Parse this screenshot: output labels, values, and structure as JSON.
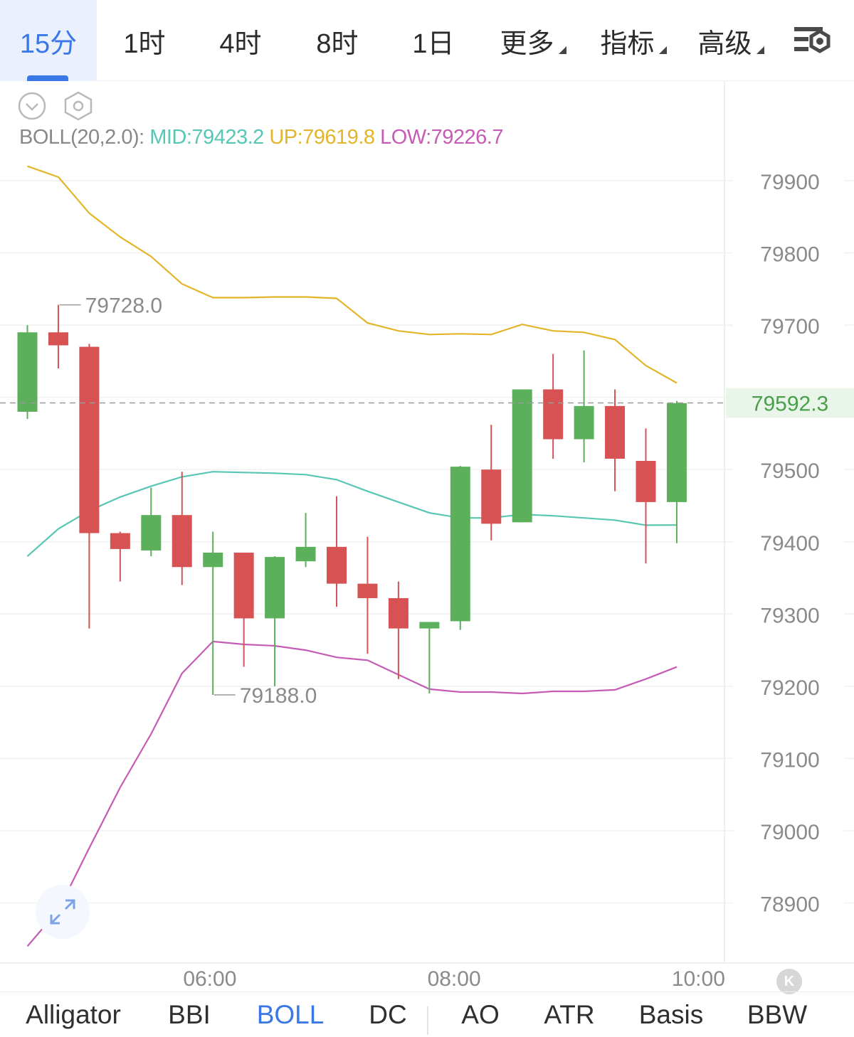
{
  "tabs": [
    {
      "label": "15分",
      "active": true,
      "caret": false
    },
    {
      "label": "1时",
      "active": false,
      "caret": false
    },
    {
      "label": "4时",
      "active": false,
      "caret": false
    },
    {
      "label": "8时",
      "active": false,
      "caret": false
    },
    {
      "label": "1日",
      "active": false,
      "caret": false
    },
    {
      "label": "更多",
      "active": false,
      "caret": true
    },
    {
      "label": "指标",
      "active": false,
      "caret": true
    },
    {
      "label": "高级",
      "active": false,
      "caret": true
    }
  ],
  "settings_icon": "chart-settings-icon",
  "boll": {
    "label": "BOLL(20,2.0):",
    "mid": "MID:79423.2",
    "up": "UP:79619.8",
    "low": "LOW:79226.7"
  },
  "colors": {
    "up_candle": "#5cb05c",
    "down_candle": "#d75252",
    "mid_line": "#58c6b4",
    "up_line": "#e3b52b",
    "low_line": "#c55bb4",
    "last_price_bg": "#eaf5ea",
    "last_price_text": "#4a9f4a",
    "accent": "#3b78e7"
  },
  "chart_data": {
    "type": "candlestick",
    "y_ticks": [
      79900,
      79800,
      79700,
      79600,
      79500,
      79400,
      79300,
      79200,
      79100,
      79000,
      78900
    ],
    "y_tick_labels": [
      "79900",
      "79800",
      "79700",
      "79500",
      "79400",
      "79300",
      "79200",
      "79100",
      "79000",
      "78900"
    ],
    "ylim": [
      78850,
      79950
    ],
    "x_tick_labels": [
      {
        "label": "06:00",
        "index": 5.9
      },
      {
        "label": "08:00",
        "index": 13.8
      },
      {
        "label": "10:00",
        "index": 21.7
      }
    ],
    "last_price": 79592.3,
    "last_price_label": "79592.3",
    "high_marker": {
      "label": "79728.0",
      "value": 79728.0,
      "index": 0.9
    },
    "low_marker": {
      "label": "79188.0",
      "value": 79188.0,
      "index": 5.9
    },
    "candles": [
      {
        "o": 79580,
        "h": 79700,
        "l": 79570,
        "c": 79690
      },
      {
        "o": 79690,
        "h": 79728,
        "l": 79640,
        "c": 79672
      },
      {
        "o": 79670,
        "h": 79674,
        "l": 79280,
        "c": 79412
      },
      {
        "o": 79412,
        "h": 79414,
        "l": 79345,
        "c": 79390
      },
      {
        "o": 79388,
        "h": 79475,
        "l": 79380,
        "c": 79437
      },
      {
        "o": 79437,
        "h": 79497,
        "l": 79340,
        "c": 79365
      },
      {
        "o": 79365,
        "h": 79414,
        "l": 79188,
        "c": 79385
      },
      {
        "o": 79385,
        "h": 79385,
        "l": 79227,
        "c": 79294
      },
      {
        "o": 79294,
        "h": 79380,
        "l": 79200,
        "c": 79379
      },
      {
        "o": 79373,
        "h": 79440,
        "l": 79365,
        "c": 79393
      },
      {
        "o": 79393,
        "h": 79463,
        "l": 79310,
        "c": 79342
      },
      {
        "o": 79342,
        "h": 79407,
        "l": 79245,
        "c": 79322
      },
      {
        "o": 79322,
        "h": 79345,
        "l": 79210,
        "c": 79280
      },
      {
        "o": 79280,
        "h": 79288,
        "l": 79190,
        "c": 79289
      },
      {
        "o": 79290,
        "h": 79505,
        "l": 79278,
        "c": 79504
      },
      {
        "o": 79500,
        "h": 79562,
        "l": 79402,
        "c": 79425
      },
      {
        "o": 79427,
        "h": 79611,
        "l": 79427,
        "c": 79611
      },
      {
        "o": 79611,
        "h": 79660,
        "l": 79515,
        "c": 79542
      },
      {
        "o": 79542,
        "h": 79665,
        "l": 79510,
        "c": 79588
      },
      {
        "o": 79588,
        "h": 79611,
        "l": 79470,
        "c": 79515
      },
      {
        "o": 79512,
        "h": 79557,
        "l": 79370,
        "c": 79455
      },
      {
        "o": 79455,
        "h": 79595,
        "l": 79398,
        "c": 79592
      }
    ],
    "boll_up": [
      79920,
      79905,
      79855,
      79822,
      79795,
      79757,
      79738,
      79738,
      79739,
      79739,
      79737,
      79703,
      79692,
      79687,
      79688,
      79687,
      79701,
      79692,
      79690,
      79680,
      79644,
      79619.8
    ],
    "boll_mid": [
      79380,
      79418,
      79443,
      79462,
      79477,
      79490,
      79497,
      79496,
      79495,
      79493,
      79486,
      79470,
      79455,
      79440,
      79433,
      79433,
      79438,
      79436,
      79433,
      79430,
      79423,
      79423.2
    ],
    "boll_low": [
      78840,
      78890,
      78976,
      79060,
      79134,
      79218,
      79262,
      79258,
      79256,
      79250,
      79240,
      79236,
      79216,
      79196,
      79192,
      79192,
      79190,
      79193,
      79193,
      79195,
      79210,
      79226.7
    ]
  },
  "indicators": [
    {
      "label": "Alligator",
      "active": false
    },
    {
      "label": "BBI",
      "active": false
    },
    {
      "label": "BOLL",
      "active": true
    },
    {
      "label": "DC",
      "active": false
    },
    {
      "label": "AO",
      "active": false
    },
    {
      "label": "ATR",
      "active": false
    },
    {
      "label": "Basis",
      "active": false
    },
    {
      "label": "BBW",
      "active": false
    }
  ],
  "icons": {
    "collapse": "chevron-down-circle-icon",
    "indicator_settings": "hexagon-gear-icon",
    "expand": "expand-arrows-icon",
    "k": "k-logo-icon"
  },
  "k_label": "K"
}
